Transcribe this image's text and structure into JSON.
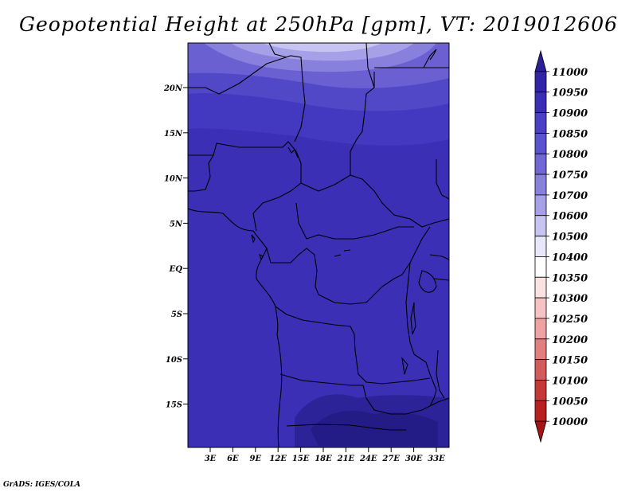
{
  "title": "Geopotential Height at 250hPa [gpm], VT: 2019012606",
  "credit": "GrADS: IGES/COLA",
  "map": {
    "y_ticks": [
      "20N",
      "15N",
      "10N",
      "5N",
      "EQ",
      "5S",
      "10S",
      "15S"
    ],
    "x_ticks": [
      "3E",
      "6E",
      "9E",
      "12E",
      "15E",
      "18E",
      "21E",
      "24E",
      "27E",
      "30E",
      "33E"
    ],
    "field_color": "#3a2fb5"
  },
  "colorbar": {
    "levels": [
      "11000",
      "10950",
      "10900",
      "10850",
      "10800",
      "10750",
      "10700",
      "10600",
      "10500",
      "10400",
      "10350",
      "10300",
      "10250",
      "10200",
      "10150",
      "10100",
      "10050",
      "10000"
    ],
    "colors": [
      "#2a1f95",
      "#3224a8",
      "#3a2eb8",
      "#4a3fc6",
      "#5a52cf",
      "#7066d6",
      "#8880dd",
      "#a6a0e8",
      "#c8c4f1",
      "#e8e6f9",
      "#ffffff",
      "#fbe2e2",
      "#f5c3c3",
      "#efa2a2",
      "#e37f7f",
      "#d55a5a",
      "#c63838",
      "#b82020",
      "#a51313"
    ]
  }
}
